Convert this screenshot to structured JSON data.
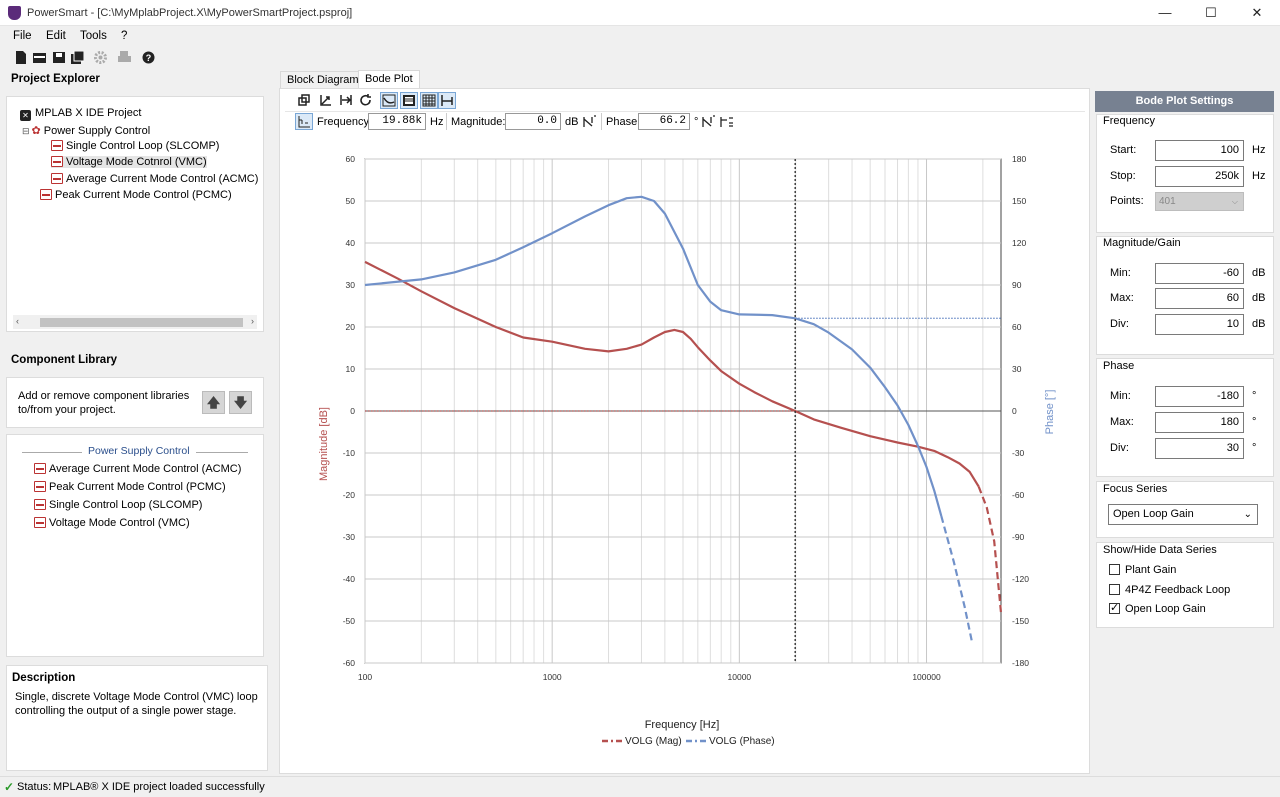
{
  "window": {
    "title": "PowerSmart - [C:\\MyMplabProject.X\\MyPowerSmartProject.psproj]",
    "minimize": "—",
    "maximize": "☐",
    "close": "✕"
  },
  "menu": [
    "File",
    "Edit",
    "Tools",
    "?"
  ],
  "toolbar_icons": [
    "new-file-icon",
    "open-icon",
    "save-icon",
    "save-all-icon",
    "settings-icon",
    "print-icon",
    "help-icon"
  ],
  "project_explorer": {
    "title": "Project Explorer",
    "root": "MPLAB X IDE Project",
    "node": "Power Supply Control",
    "items": [
      "Single Control Loop (SLCOMP)",
      "Voltage Mode Cotnrol (VMC)",
      "Average Current Mode Control (ACMC)",
      "Peak Current Mode Control (PCMC)"
    ],
    "selected_index": 1
  },
  "component_library": {
    "title": "Component Library",
    "hint": "Add or remove component libraries to/from your project.",
    "group": "Power Supply Control",
    "items": [
      "Average Current Mode Control (ACMC)",
      "Peak Current Mode Control (PCMC)",
      "Single Control Loop (SLCOMP)",
      "Voltage Mode Control (VMC)"
    ]
  },
  "description": {
    "title": "Description",
    "text": "Single, discrete Voltage Mode Control (VMC) loop controlling the output of a single power stage."
  },
  "tabs": [
    "Block Diagram",
    "Bode Plot"
  ],
  "active_tab": "Bode Plot",
  "cursor": {
    "frequency_label": "Frequency:",
    "frequency_value": "19.88k",
    "frequency_unit": "Hz",
    "magnitude_label": "Magnitude:",
    "magnitude_value": "0.0",
    "magnitude_unit": "dB",
    "phase_label": "Phase:",
    "phase_value": "66.2",
    "phase_unit": "°"
  },
  "settings": {
    "header": "Bode Plot Settings",
    "frequency": {
      "title": "Frequency",
      "start_label": "Start:",
      "start": "100",
      "start_unit": "Hz",
      "stop_label": "Stop:",
      "stop": "250k",
      "stop_unit": "Hz",
      "points_label": "Points:",
      "points": "401"
    },
    "magnitude": {
      "title": "Magnitude/Gain",
      "min_label": "Min:",
      "min": "-60",
      "min_unit": "dB",
      "max_label": "Max:",
      "max": "60",
      "max_unit": "dB",
      "div_label": "Div:",
      "div": "10",
      "div_unit": "dB"
    },
    "phase": {
      "title": "Phase",
      "min_label": "Min:",
      "min": "-180",
      "min_unit": "°",
      "max_label": "Max:",
      "max": "180",
      "max_unit": "°",
      "div_label": "Div:",
      "div": "30",
      "div_unit": "°"
    },
    "focus": {
      "title": "Focus Series",
      "value": "Open Loop Gain"
    },
    "series": {
      "title": "Show/Hide Data Series",
      "items": [
        {
          "label": "Plant Gain",
          "checked": false
        },
        {
          "label": "4P4Z Feedback Loop",
          "checked": false
        },
        {
          "label": "Open Loop Gain",
          "checked": true
        }
      ]
    }
  },
  "status": {
    "label": "Status:",
    "text": "MPLAB® X IDE project loaded successfully"
  },
  "colors": {
    "magnitude": "#b5504f",
    "phase": "#7191c9",
    "cursor": "#333333",
    "settings_header": "#778191"
  },
  "chart_data": {
    "type": "line",
    "xlabel": "Frequency [Hz]",
    "ylabel": "Magnitude [dB]",
    "y2label": "Phase [°]",
    "x_scale": "log",
    "xlim": [
      100,
      250000
    ],
    "ylim": [
      -60,
      60
    ],
    "y2lim": [
      -180,
      180
    ],
    "x_ticks": [
      "100",
      "1000",
      "10000",
      "100000"
    ],
    "y_ticks": [
      60,
      50,
      40,
      30,
      20,
      10,
      0,
      -10,
      -20,
      -30,
      -40,
      -50,
      -60
    ],
    "y2_ticks": [
      180,
      150,
      120,
      90,
      60,
      30,
      0,
      -30,
      -60,
      -90,
      -120,
      -150,
      -180
    ],
    "grid": true,
    "cursor_x": 19880,
    "legend_position": "bottom-center",
    "series": [
      {
        "name": "VOLG (Mag)",
        "axis": "left",
        "x": [
          100,
          150,
          200,
          300,
          500,
          700,
          1000,
          1500,
          2000,
          2500,
          3000,
          3500,
          4000,
          4500,
          5000,
          5500,
          6000,
          7000,
          8000,
          10000,
          12000,
          15000,
          19880,
          25000,
          35000,
          50000,
          70000,
          90000,
          110000,
          130000,
          150000,
          170000,
          190000,
          210000,
          230000,
          250000
        ],
        "values": [
          35.5,
          31.5,
          28.5,
          24.5,
          20,
          17.5,
          16.5,
          14.8,
          14.2,
          14.8,
          15.8,
          17.5,
          18.8,
          19.3,
          18.8,
          17.2,
          15.2,
          12,
          9.5,
          6.5,
          4.5,
          2.3,
          0.0,
          -2,
          -4,
          -6,
          -7.5,
          -8.5,
          -9.5,
          -11,
          -12.5,
          -14.5,
          -18,
          -23,
          -31,
          -48
        ]
      },
      {
        "name": "VOLG (Phase)",
        "axis": "right",
        "x": [
          100,
          200,
          300,
          500,
          700,
          1000,
          1500,
          2000,
          2500,
          3000,
          3500,
          4000,
          5000,
          6000,
          7000,
          8000,
          10000,
          15000,
          19880,
          25000,
          30000,
          40000,
          50000,
          60000,
          70000,
          80000,
          90000,
          100000,
          110000,
          120000,
          140000,
          160000,
          175000
        ],
        "values": [
          90,
          94,
          99,
          108,
          117,
          127,
          139,
          147,
          152,
          153,
          150,
          141,
          116,
          90,
          78,
          72,
          69,
          68.5,
          66.2,
          62,
          56,
          44,
          31,
          17,
          4,
          -10,
          -25,
          -40,
          -57,
          -75,
          -108,
          -140,
          -165
        ]
      }
    ]
  }
}
